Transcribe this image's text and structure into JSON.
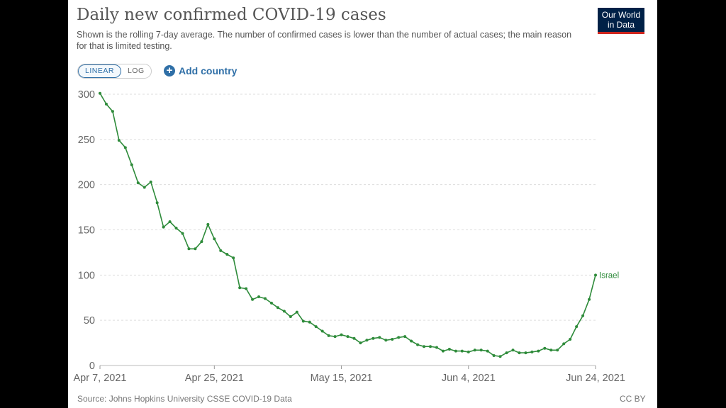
{
  "header": {
    "title": "Daily new confirmed COVID-19 cases",
    "subtitle": "Shown is the rolling 7-day average. The number of confirmed cases is lower than the number of actual cases; the main reason for that is limited testing.",
    "logo_line1": "Our World",
    "logo_line2": "in Data"
  },
  "controls": {
    "linear_label": "LINEAR",
    "log_label": "LOG",
    "active_scale": "linear",
    "add_country_label": "Add country"
  },
  "footer": {
    "source": "Source: Johns Hopkins University CSSE COVID-19 Data",
    "license": "CC BY"
  },
  "colors": {
    "series": "#2e8b3a",
    "accent": "#2f6fa7",
    "logo_bg": "#002147",
    "logo_bar": "#ce261e"
  },
  "chart_data": {
    "type": "line",
    "title": "Daily new confirmed COVID-19 cases",
    "x_start_label": "Apr 7, 2021",
    "x_tick_labels": [
      "Apr 7, 2021",
      "Apr 25, 2021",
      "May 15, 2021",
      "Jun 4, 2021",
      "Jun 24, 2021"
    ],
    "x_tick_days": [
      0,
      18,
      38,
      58,
      78
    ],
    "ylim": [
      0,
      300
    ],
    "y_ticks": [
      0,
      50,
      100,
      150,
      200,
      250,
      300
    ],
    "grid": "horizontal-dashed",
    "series": [
      {
        "name": "Israel",
        "values": [
          301,
          289,
          281,
          249,
          241,
          222,
          202,
          197,
          203,
          180,
          153,
          159,
          152,
          146,
          129,
          129,
          137,
          156,
          140,
          127,
          123,
          119,
          86,
          85,
          73,
          76,
          74,
          69,
          64,
          60,
          54,
          59,
          49,
          48,
          43,
          38,
          33,
          32,
          34,
          32,
          30,
          25,
          28,
          30,
          31,
          28,
          29,
          31,
          32,
          27,
          23,
          21,
          21,
          20,
          16,
          18,
          16,
          16,
          15,
          17,
          17,
          16,
          11,
          10,
          14,
          17,
          14,
          14,
          15,
          16,
          19,
          17,
          17,
          24,
          29,
          43,
          55,
          73,
          100
        ]
      }
    ]
  }
}
